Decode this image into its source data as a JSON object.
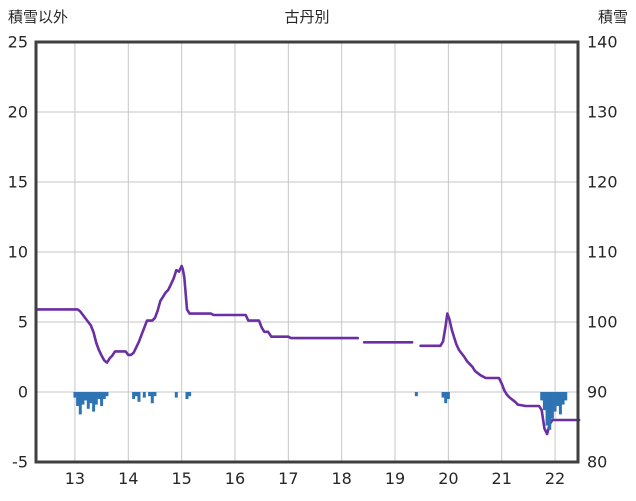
{
  "header": {
    "left_label": "積雪以外",
    "title": "古丹別",
    "right_label": "積雪"
  },
  "colors": {
    "background": "#ffffff",
    "frame": "#3f3f3f",
    "grid": "#c6c6c6",
    "text": "#262626",
    "line": "#6a2fa2",
    "bar": "#2e74b5"
  },
  "chart_data": {
    "type": "line",
    "title": "古丹別",
    "x_axis": {
      "min": 12.27,
      "max": 22.43,
      "ticks": [
        13,
        14,
        15,
        16,
        17,
        18,
        19,
        20,
        21,
        22
      ]
    },
    "left_axis": {
      "label": "積雪以外",
      "min": -5,
      "max": 25,
      "ticks": [
        -5,
        0,
        5,
        10,
        15,
        20,
        25
      ]
    },
    "right_axis": {
      "label": "積雪",
      "min": 80,
      "max": 140,
      "ticks": [
        80,
        90,
        100,
        110,
        120,
        130,
        140
      ]
    },
    "gridlines": {
      "horizontal_left_values": [
        0,
        5,
        10,
        15,
        20
      ],
      "vertical_x_values": [
        13,
        14,
        15,
        16,
        17,
        18,
        19,
        20,
        21,
        22
      ]
    },
    "series": [
      {
        "name": "積雪",
        "type": "line",
        "axis": "right",
        "segments": [
          [
            [
              12.3,
              101.8
            ],
            [
              13.05,
              101.8
            ],
            [
              13.1,
              101.5
            ],
            [
              13.2,
              100.5
            ],
            [
              13.3,
              99.5
            ],
            [
              13.35,
              98.5
            ],
            [
              13.4,
              97.0
            ],
            [
              13.45,
              96.0
            ],
            [
              13.5,
              95.2
            ],
            [
              13.55,
              94.5
            ],
            [
              13.6,
              94.2
            ],
            [
              13.65,
              94.8
            ],
            [
              13.7,
              95.2
            ],
            [
              13.75,
              95.8
            ],
            [
              13.95,
              95.8
            ],
            [
              14.0,
              95.3
            ],
            [
              14.05,
              95.3
            ],
            [
              14.1,
              95.6
            ],
            [
              14.15,
              96.4
            ],
            [
              14.2,
              97.2
            ],
            [
              14.25,
              98.2
            ],
            [
              14.3,
              99.2
            ],
            [
              14.35,
              100.2
            ],
            [
              14.45,
              100.2
            ],
            [
              14.5,
              100.6
            ],
            [
              14.55,
              101.6
            ],
            [
              14.6,
              103.0
            ],
            [
              14.65,
              103.6
            ],
            [
              14.7,
              104.2
            ],
            [
              14.75,
              104.6
            ],
            [
              14.8,
              105.4
            ],
            [
              14.85,
              106.2
            ],
            [
              14.9,
              107.4
            ],
            [
              14.95,
              107.2
            ],
            [
              15.0,
              108.0
            ],
            [
              15.02,
              107.6
            ],
            [
              15.05,
              106.4
            ],
            [
              15.1,
              101.8
            ],
            [
              15.15,
              101.2
            ],
            [
              15.55,
              101.2
            ],
            [
              15.6,
              101.0
            ],
            [
              16.2,
              101.0
            ],
            [
              16.25,
              100.2
            ],
            [
              16.45,
              100.2
            ],
            [
              16.5,
              99.2
            ],
            [
              16.55,
              98.6
            ],
            [
              16.62,
              98.6
            ],
            [
              16.68,
              97.9
            ],
            [
              17.0,
              97.9
            ],
            [
              17.05,
              97.7
            ],
            [
              18.3,
              97.7
            ]
          ],
          [
            [
              18.42,
              97.1
            ],
            [
              19.32,
              97.1
            ]
          ],
          [
            [
              19.48,
              96.6
            ],
            [
              19.85,
              96.6
            ],
            [
              19.9,
              97.2
            ],
            [
              19.95,
              99.5
            ],
            [
              19.98,
              101.2
            ],
            [
              20.02,
              100.4
            ],
            [
              20.06,
              99.0
            ],
            [
              20.1,
              98.0
            ],
            [
              20.15,
              96.8
            ],
            [
              20.2,
              96.0
            ],
            [
              20.3,
              95.0
            ],
            [
              20.35,
              94.4
            ],
            [
              20.45,
              93.6
            ],
            [
              20.5,
              93.0
            ],
            [
              20.6,
              92.4
            ],
            [
              20.7,
              92.0
            ],
            [
              20.95,
              92.0
            ],
            [
              21.0,
              91.2
            ],
            [
              21.05,
              90.2
            ],
            [
              21.1,
              89.6
            ],
            [
              21.15,
              89.2
            ],
            [
              21.25,
              88.6
            ],
            [
              21.3,
              88.2
            ],
            [
              21.45,
              88.0
            ],
            [
              21.7,
              88.0
            ],
            [
              21.75,
              87.4
            ],
            [
              21.8,
              84.8
            ],
            [
              21.85,
              84.0
            ],
            [
              21.9,
              85.4
            ],
            [
              21.95,
              86.0
            ],
            [
              22.45,
              86.0
            ]
          ]
        ]
      },
      {
        "name": "積雪以外",
        "type": "bar",
        "axis": "left",
        "points": [
          [
            13.0,
            -0.4
          ],
          [
            13.05,
            -1.0
          ],
          [
            13.1,
            -1.6
          ],
          [
            13.15,
            -0.9
          ],
          [
            13.2,
            -0.6
          ],
          [
            13.25,
            -1.2
          ],
          [
            13.3,
            -0.8
          ],
          [
            13.35,
            -1.4
          ],
          [
            13.4,
            -0.9
          ],
          [
            13.45,
            -0.5
          ],
          [
            13.5,
            -1.0
          ],
          [
            13.55,
            -0.5
          ],
          [
            13.6,
            -0.3
          ],
          [
            14.1,
            -0.5
          ],
          [
            14.15,
            -0.3
          ],
          [
            14.2,
            -0.7
          ],
          [
            14.3,
            -0.4
          ],
          [
            14.4,
            -0.3
          ],
          [
            14.45,
            -0.8
          ],
          [
            14.5,
            -0.3
          ],
          [
            14.9,
            -0.4
          ],
          [
            15.1,
            -0.5
          ],
          [
            15.15,
            -0.3
          ],
          [
            19.4,
            -0.3
          ],
          [
            19.9,
            -0.4
          ],
          [
            19.95,
            -0.8
          ],
          [
            20.0,
            -0.5
          ],
          [
            21.75,
            -0.6
          ],
          [
            21.8,
            -1.3
          ],
          [
            21.85,
            -2.4
          ],
          [
            21.9,
            -2.7
          ],
          [
            21.95,
            -1.9
          ],
          [
            22.0,
            -1.4
          ],
          [
            22.05,
            -1.0
          ],
          [
            22.1,
            -1.6
          ],
          [
            22.15,
            -0.9
          ],
          [
            22.2,
            -0.6
          ]
        ]
      }
    ]
  }
}
